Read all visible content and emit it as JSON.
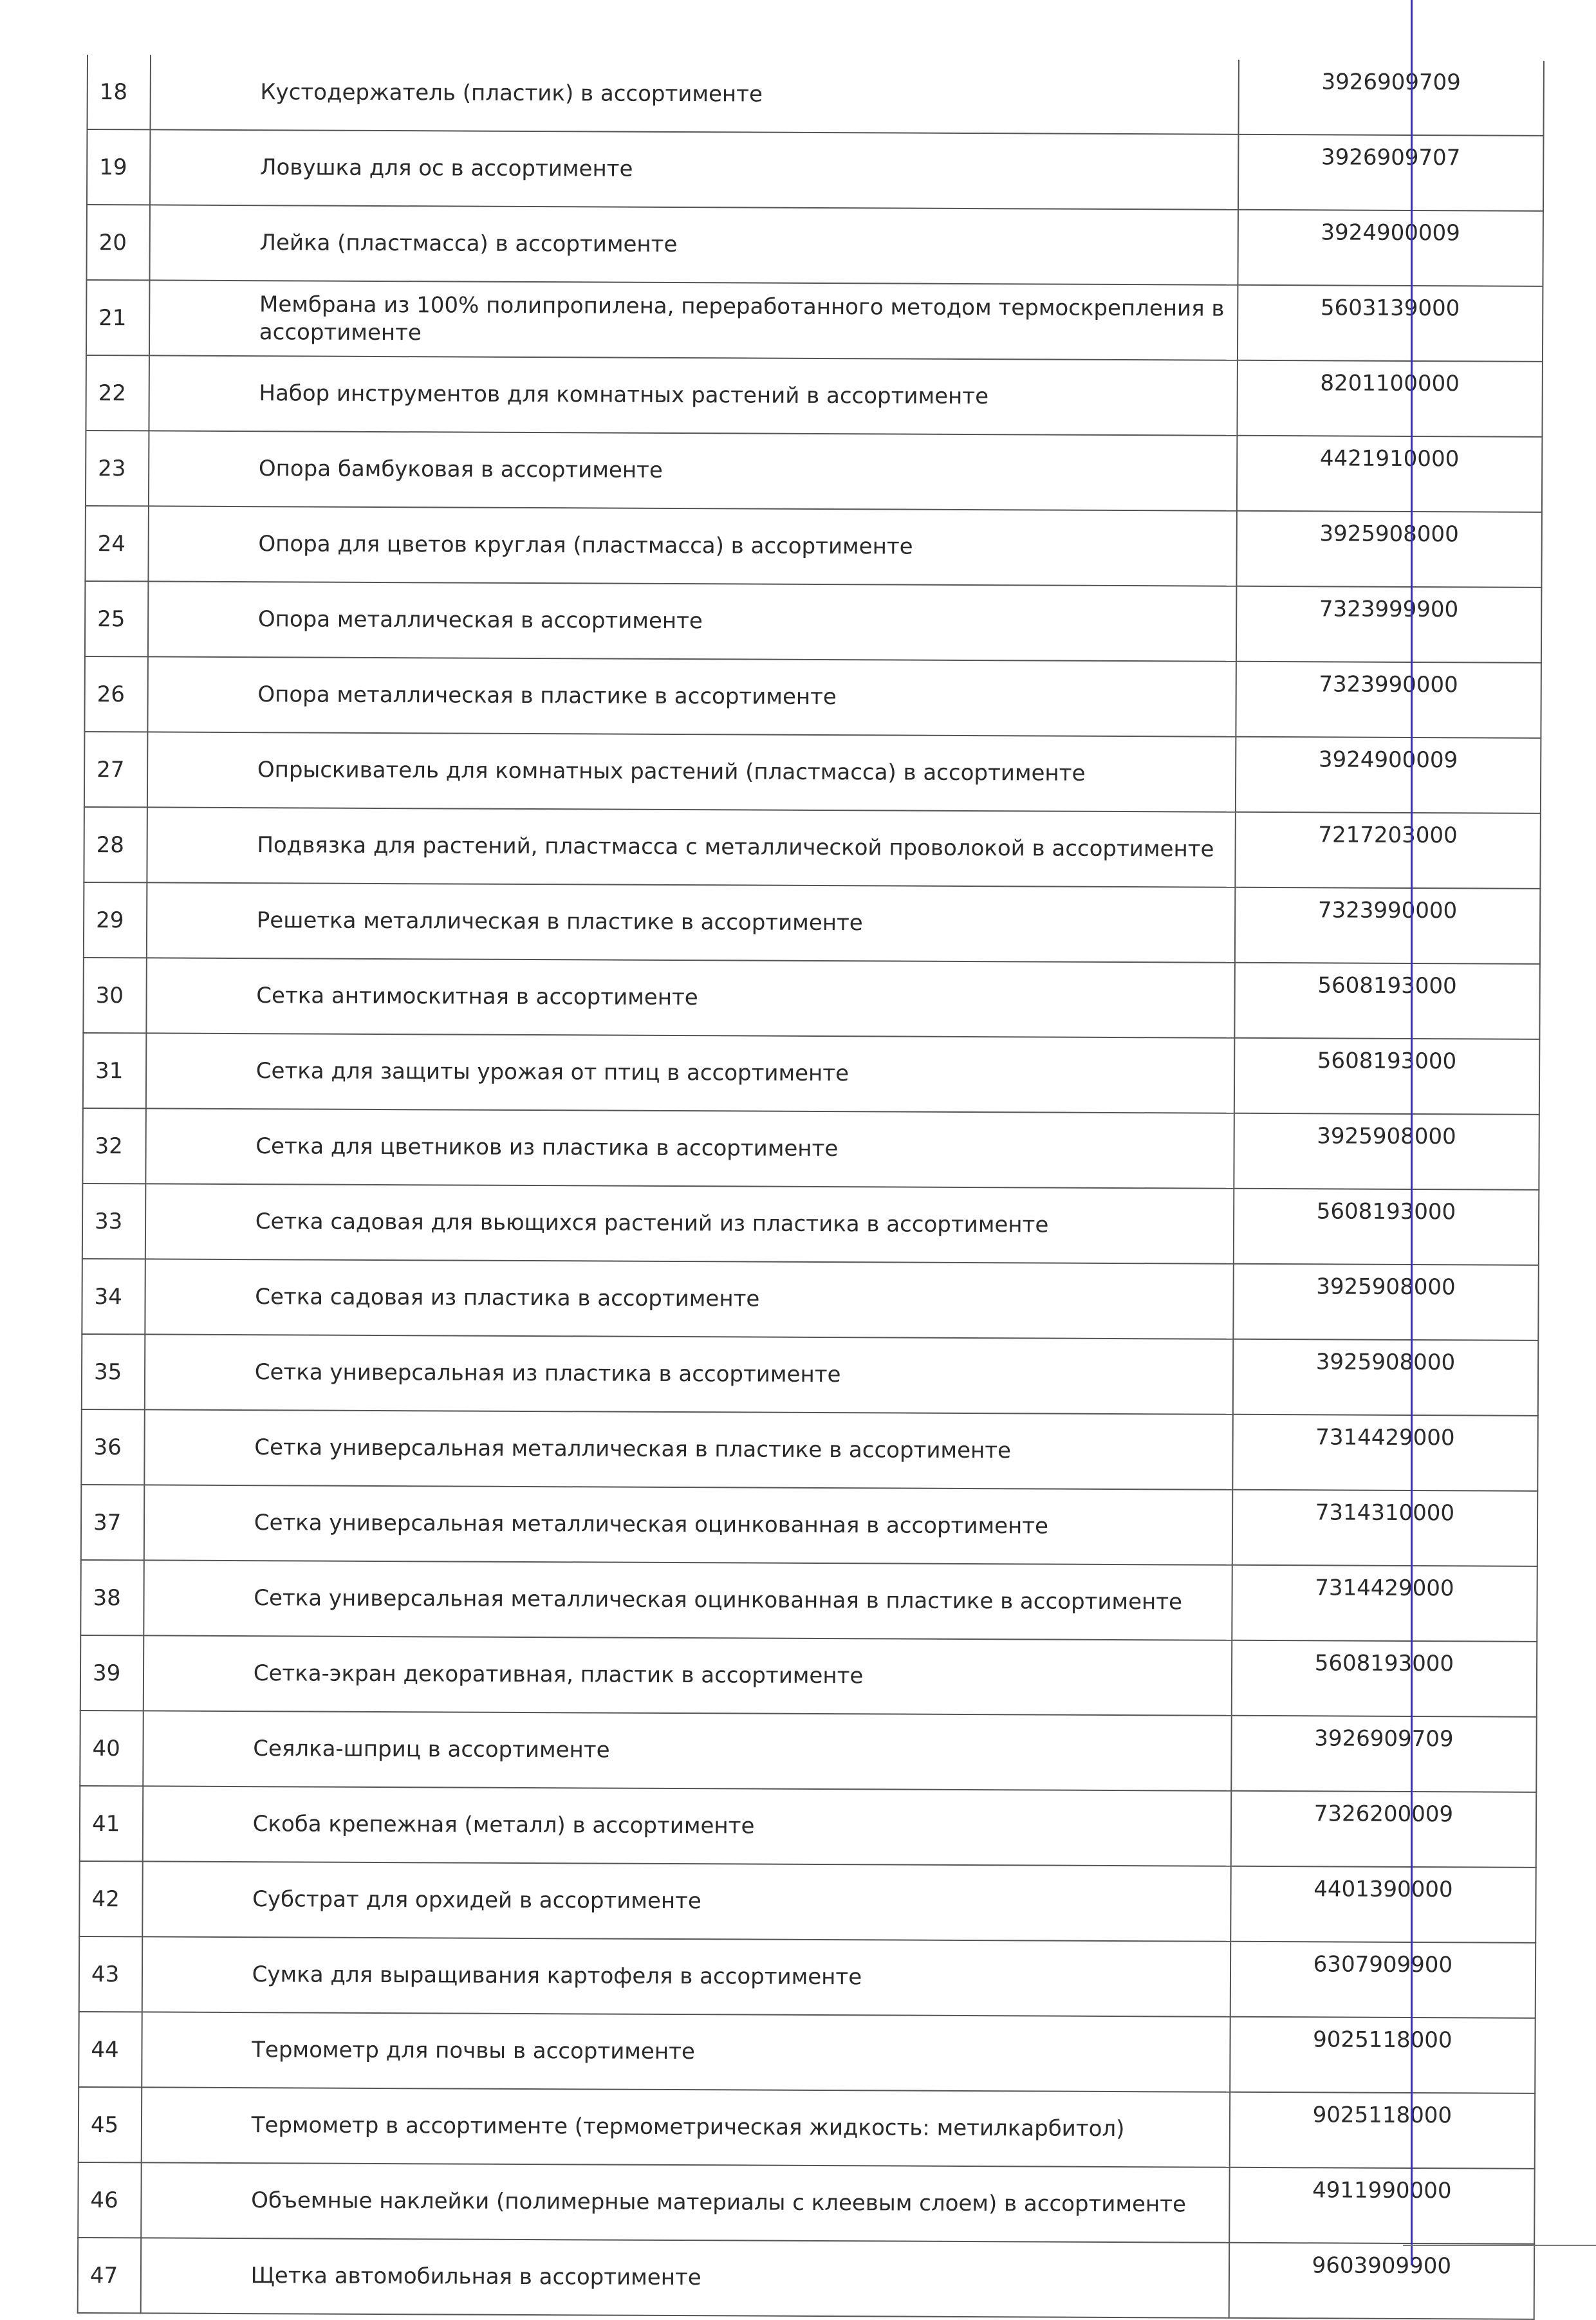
{
  "rows": [
    {
      "n": "18",
      "name": "Кустодержатель (пластик) в ассортименте",
      "code": "3926909709"
    },
    {
      "n": "19",
      "name": "Ловушка для ос в ассортименте",
      "code": "3926909707"
    },
    {
      "n": "20",
      "name": "Лейка (пластмасса) в ассортименте",
      "code": "3924900009"
    },
    {
      "n": "21",
      "name": "Мембрана из 100% полипропилена, переработанного методом термоскрепления в ассортименте",
      "code": "5603139000"
    },
    {
      "n": "22",
      "name": "Набор инструментов для комнатных растений в ассортименте",
      "code": "8201100000"
    },
    {
      "n": "23",
      "name": "Опора бамбуковая в ассортименте",
      "code": "4421910000"
    },
    {
      "n": "24",
      "name": "Опора для цветов круглая (пластмасса) в ассортименте",
      "code": "3925908000"
    },
    {
      "n": "25",
      "name": "Опора металлическая в ассортименте",
      "code": "7323999900"
    },
    {
      "n": "26",
      "name": "Опора металлическая в пластике в ассортименте",
      "code": "7323990000"
    },
    {
      "n": "27",
      "name": "Опрыскиватель для комнатных растений (пластмасса) в ассортименте",
      "code": "3924900009"
    },
    {
      "n": "28",
      "name": "Подвязка для растений, пластмасса с металлической проволокой в ассортименте",
      "code": "7217203000"
    },
    {
      "n": "29",
      "name": "Решетка металлическая в пластике в ассортименте",
      "code": "7323990000"
    },
    {
      "n": "30",
      "name": "Сетка антимоскитная в ассортименте",
      "code": "5608193000"
    },
    {
      "n": "31",
      "name": "Сетка для защиты урожая от птиц в ассортименте",
      "code": "5608193000"
    },
    {
      "n": "32",
      "name": "Сетка для цветников из пластика в ассортименте",
      "code": "3925908000"
    },
    {
      "n": "33",
      "name": "Сетка садовая для вьющихся растений из пластика в ассортименте",
      "code": "5608193000"
    },
    {
      "n": "34",
      "name": "Сетка садовая из пластика в ассортименте",
      "code": "3925908000"
    },
    {
      "n": "35",
      "name": "Сетка универсальная из пластика в ассортименте",
      "code": "3925908000"
    },
    {
      "n": "36",
      "name": "Сетка универсальная металлическая в пластике в ассортименте",
      "code": "7314429000"
    },
    {
      "n": "37",
      "name": "Сетка универсальная металлическая оцинкованная в ассортименте",
      "code": "7314310000"
    },
    {
      "n": "38",
      "name": "Сетка универсальная металлическая оцинкованная в пластике в ассортименте",
      "code": "7314429000"
    },
    {
      "n": "39",
      "name": "Сетка-экран декоративная, пластик в ассортименте",
      "code": "5608193000"
    },
    {
      "n": "40",
      "name": "Сеялка-шприц в ассортименте",
      "code": "3926909709"
    },
    {
      "n": "41",
      "name": "Скоба крепежная (металл) в ассортименте",
      "code": "7326200009"
    },
    {
      "n": "42",
      "name": "Субстрат для орхидей в ассортименте",
      "code": "4401390000"
    },
    {
      "n": "43",
      "name": "Сумка для выращивания картофеля в ассортименте",
      "code": "6307909900"
    },
    {
      "n": "44",
      "name": "Термометр для почвы в ассортименте",
      "code": "9025118000"
    },
    {
      "n": "45",
      "name": "Термометр в ассортименте (термометрическая жидкость: метилкарбитол)",
      "code": "9025118000"
    },
    {
      "n": "46",
      "name": "Объемные наклейки (полимерные материалы с клеевым слоем) в ассортименте",
      "code": "4911990000"
    },
    {
      "n": "47",
      "name": "Щетка автомобильная в ассортименте",
      "code": "9603909900"
    }
  ]
}
